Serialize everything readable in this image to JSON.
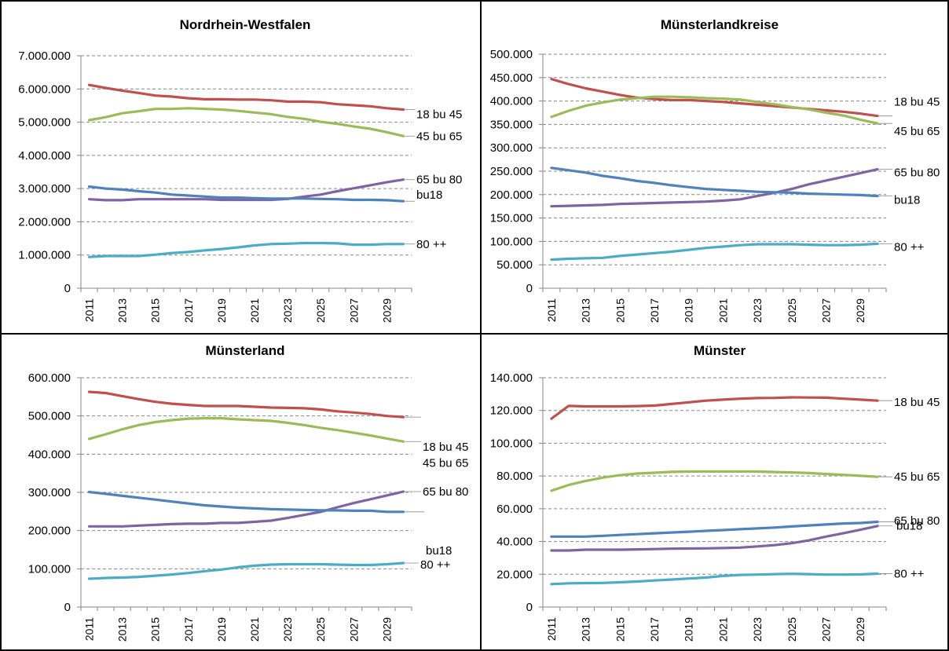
{
  "chart_data": [
    {
      "type": "line",
      "title": "Nordrhein-Westfalen",
      "x": [
        2011,
        2012,
        2013,
        2014,
        2015,
        2016,
        2017,
        2018,
        2019,
        2020,
        2021,
        2022,
        2023,
        2024,
        2025,
        2026,
        2027,
        2028,
        2029,
        2030
      ],
      "xticks": [
        "2011",
        "2013",
        "2015",
        "2017",
        "2019",
        "2021",
        "2023",
        "2025",
        "2027",
        "2029"
      ],
      "ylim": [
        0,
        7000000
      ],
      "yticks": [
        "0",
        "1.000.000",
        "2.000.000",
        "3.000.000",
        "4.000.000",
        "5.000.000",
        "6.000.000",
        "7.000.000"
      ],
      "grid": true,
      "series": [
        {
          "name": "18 bu 45",
          "color": "#c0504d",
          "values": [
            6120000,
            6030000,
            5950000,
            5880000,
            5800000,
            5770000,
            5720000,
            5690000,
            5690000,
            5680000,
            5680000,
            5660000,
            5620000,
            5620000,
            5600000,
            5540000,
            5510000,
            5480000,
            5420000,
            5380000
          ]
        },
        {
          "name": "45 bu 65",
          "color": "#9bbb59",
          "values": [
            5060000,
            5150000,
            5270000,
            5330000,
            5400000,
            5400000,
            5420000,
            5400000,
            5380000,
            5340000,
            5290000,
            5240000,
            5160000,
            5100000,
            5010000,
            4950000,
            4870000,
            4800000,
            4700000,
            4580000
          ]
        },
        {
          "name": "65 bu 80",
          "color": "#8064a2",
          "values": [
            2680000,
            2650000,
            2650000,
            2680000,
            2680000,
            2680000,
            2680000,
            2680000,
            2660000,
            2660000,
            2660000,
            2660000,
            2690000,
            2760000,
            2820000,
            2920000,
            3010000,
            3100000,
            3190000,
            3270000
          ]
        },
        {
          "name": "bu18",
          "color": "#4f81bd",
          "values": [
            3060000,
            3000000,
            2970000,
            2920000,
            2880000,
            2820000,
            2790000,
            2760000,
            2730000,
            2730000,
            2710000,
            2700000,
            2700000,
            2700000,
            2690000,
            2680000,
            2660000,
            2660000,
            2650000,
            2620000
          ]
        },
        {
          "name": "80 ++",
          "color": "#4bacc6",
          "values": [
            940000,
            970000,
            970000,
            970000,
            1010000,
            1060000,
            1090000,
            1140000,
            1180000,
            1230000,
            1290000,
            1330000,
            1340000,
            1360000,
            1360000,
            1350000,
            1310000,
            1310000,
            1330000,
            1330000
          ]
        }
      ]
    },
    {
      "type": "line",
      "title": "Münsterlandkreise",
      "x": [
        2011,
        2012,
        2013,
        2014,
        2015,
        2016,
        2017,
        2018,
        2019,
        2020,
        2021,
        2022,
        2023,
        2024,
        2025,
        2026,
        2027,
        2028,
        2029,
        2030
      ],
      "xticks": [
        "2011",
        "2013",
        "2015",
        "2017",
        "2019",
        "2021",
        "2023",
        "2025",
        "2027",
        "2029"
      ],
      "ylim": [
        0,
        500000
      ],
      "yticks": [
        "0",
        "50.000",
        "100.000",
        "150.000",
        "200.000",
        "250.000",
        "300.000",
        "350.000",
        "400.000",
        "450.000",
        "500.000"
      ],
      "grid": true,
      "series": [
        {
          "name": "18 bu 45",
          "color": "#c0504d",
          "values": [
            447000,
            436000,
            427000,
            420000,
            413000,
            407000,
            404000,
            402000,
            402000,
            400000,
            398000,
            395000,
            392000,
            389000,
            386000,
            383000,
            380000,
            377000,
            373000,
            368000
          ]
        },
        {
          "name": "45 bu 65",
          "color": "#9bbb59",
          "values": [
            366000,
            379000,
            390000,
            397000,
            403000,
            406000,
            409000,
            409000,
            408000,
            406000,
            405000,
            403000,
            398000,
            393000,
            387000,
            382000,
            375000,
            369000,
            360000,
            352000
          ]
        },
        {
          "name": "65 bu 80",
          "color": "#8064a2",
          "values": [
            175000,
            176000,
            177000,
            178000,
            180000,
            181000,
            182000,
            183000,
            184000,
            185000,
            187000,
            190000,
            197000,
            204000,
            212000,
            222000,
            230000,
            238000,
            246000,
            254000
          ]
        },
        {
          "name": "bu18",
          "color": "#4f81bd",
          "values": [
            257000,
            252000,
            247000,
            240000,
            235000,
            229000,
            225000,
            220000,
            216000,
            212000,
            210000,
            208000,
            206000,
            205000,
            204000,
            202000,
            201000,
            200000,
            199000,
            197000
          ]
        },
        {
          "name": "80 ++",
          "color": "#4bacc6",
          "values": [
            61000,
            63000,
            64000,
            65000,
            69000,
            72000,
            75000,
            78000,
            82000,
            86000,
            89000,
            92000,
            94000,
            94000,
            94000,
            93000,
            92000,
            92000,
            93000,
            95000
          ]
        }
      ]
    },
    {
      "type": "line",
      "title": "Münsterland",
      "x": [
        2011,
        2012,
        2013,
        2014,
        2015,
        2016,
        2017,
        2018,
        2019,
        2020,
        2021,
        2022,
        2023,
        2024,
        2025,
        2026,
        2027,
        2028,
        2029,
        2030
      ],
      "xticks": [
        "2011",
        "2013",
        "2015",
        "2017",
        "2019",
        "2021",
        "2023",
        "2025",
        "2027",
        "2029"
      ],
      "ylim": [
        0,
        600000
      ],
      "yticks": [
        "0",
        "100.000",
        "200.000",
        "300.000",
        "400.000",
        "500.000",
        "600.000"
      ],
      "grid": true,
      "series": [
        {
          "name": "18 bu 45",
          "color": "#c0504d",
          "values": [
            563000,
            560000,
            552000,
            544000,
            537000,
            532000,
            529000,
            526000,
            526000,
            526000,
            524000,
            522000,
            521000,
            520000,
            517000,
            512000,
            509000,
            505000,
            500000,
            497000
          ]
        },
        {
          "name": "45 bu 65",
          "color": "#9bbb59",
          "values": [
            440000,
            452000,
            465000,
            476000,
            484000,
            489000,
            493000,
            494000,
            494000,
            491000,
            489000,
            487000,
            482000,
            476000,
            469000,
            463000,
            456000,
            449000,
            441000,
            433000
          ]
        },
        {
          "name": "65 bu 80",
          "color": "#8064a2",
          "values": [
            211000,
            211000,
            211000,
            213000,
            215000,
            217000,
            218000,
            218000,
            220000,
            220000,
            223000,
            226000,
            233000,
            241000,
            249000,
            261000,
            272000,
            282000,
            292000,
            302000
          ]
        },
        {
          "name": "bu18",
          "color": "#4f81bd",
          "values": [
            301000,
            296000,
            291000,
            286000,
            281000,
            276000,
            271000,
            266000,
            263000,
            260000,
            258000,
            256000,
            255000,
            254000,
            253000,
            253000,
            252000,
            252000,
            249000,
            249000
          ]
        },
        {
          "name": "80 ++",
          "color": "#4bacc6",
          "values": [
            74000,
            76000,
            77000,
            79000,
            82000,
            85000,
            89000,
            94000,
            98000,
            104000,
            108000,
            111000,
            112000,
            112000,
            112000,
            111000,
            110000,
            110000,
            112000,
            115000
          ]
        }
      ]
    },
    {
      "type": "line",
      "title": "Münster",
      "x": [
        2011,
        2012,
        2013,
        2014,
        2015,
        2016,
        2017,
        2018,
        2019,
        2020,
        2021,
        2022,
        2023,
        2024,
        2025,
        2026,
        2027,
        2028,
        2029,
        2030
      ],
      "xticks": [
        "2011",
        "2013",
        "2015",
        "2017",
        "2019",
        "2021",
        "2023",
        "2025",
        "2027",
        "2029"
      ],
      "ylim": [
        0,
        140000
      ],
      "yticks": [
        "0",
        "20.000",
        "40.000",
        "60.000",
        "80.000",
        "100.000",
        "120.000",
        "140.000"
      ],
      "grid": true,
      "series": [
        {
          "name": "18 bu 45",
          "color": "#c0504d",
          "values": [
            115000,
            122800,
            122500,
            122500,
            122500,
            122700,
            123000,
            124000,
            125000,
            126000,
            126600,
            127200,
            127600,
            127700,
            128000,
            127900,
            127800,
            127200,
            126600,
            126000
          ]
        },
        {
          "name": "45 bu 65",
          "color": "#9bbb59",
          "values": [
            71000,
            74500,
            77000,
            79000,
            80500,
            81500,
            82000,
            82500,
            82700,
            82700,
            82700,
            82700,
            82700,
            82400,
            82200,
            81800,
            81200,
            80700,
            80100,
            79500
          ]
        },
        {
          "name": "bu18",
          "color": "#4f81bd",
          "values": [
            43000,
            43000,
            43000,
            43500,
            44000,
            44500,
            45000,
            45500,
            46000,
            46500,
            47000,
            47500,
            48000,
            48500,
            49200,
            49800,
            50400,
            51000,
            51300,
            52000
          ]
        },
        {
          "name": "65 bu 80",
          "color": "#8064a2",
          "values": [
            34500,
            34500,
            35000,
            35000,
            35000,
            35200,
            35400,
            35600,
            35700,
            35800,
            36000,
            36300,
            37000,
            37800,
            39000,
            40700,
            43000,
            45000,
            47200,
            49500
          ]
        },
        {
          "name": "80 ++",
          "color": "#4bacc6",
          "values": [
            14000,
            14500,
            14600,
            14700,
            15100,
            15600,
            16200,
            16800,
            17400,
            18000,
            19000,
            19600,
            19800,
            20100,
            20300,
            20100,
            19800,
            19800,
            19900,
            20400
          ]
        }
      ]
    }
  ]
}
